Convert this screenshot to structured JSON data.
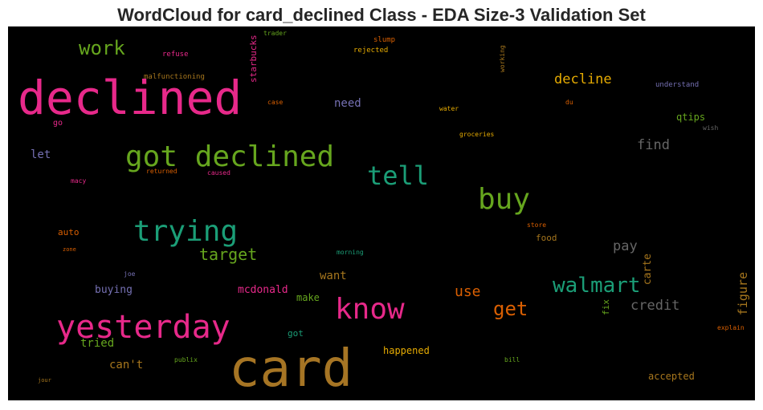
{
  "title": "WordCloud for card_declined Class - EDA Size-3 Validation Set",
  "words": [
    {
      "text": "card",
      "color": "#a67524"
    },
    {
      "text": "declined",
      "color": "#e7298a"
    },
    {
      "text": "got declined",
      "color": "#66a61e"
    },
    {
      "text": "yesterday",
      "color": "#e7298a"
    },
    {
      "text": "trying",
      "color": "#1b9e77"
    },
    {
      "text": "know",
      "color": "#e7298a"
    },
    {
      "text": "buy",
      "color": "#66a61e"
    },
    {
      "text": "tell",
      "color": "#1b9e77"
    },
    {
      "text": "walmart",
      "color": "#1b9e77"
    },
    {
      "text": "work",
      "color": "#66a61e"
    },
    {
      "text": "get",
      "color": "#d95f02"
    },
    {
      "text": "target",
      "color": "#66a61e"
    },
    {
      "text": "decline",
      "color": "#e6ab02"
    },
    {
      "text": "use",
      "color": "#d95f02"
    },
    {
      "text": "find",
      "color": "#666666"
    },
    {
      "text": "credit",
      "color": "#666666"
    },
    {
      "text": "pay",
      "color": "#666666"
    },
    {
      "text": "figure",
      "color": "#a6761d"
    },
    {
      "text": "carte",
      "color": "#a6761d"
    },
    {
      "text": "need",
      "color": "#7570b3"
    },
    {
      "text": "want",
      "color": "#a6761d"
    },
    {
      "text": "can't",
      "color": "#a6761d"
    },
    {
      "text": "tried",
      "color": "#66a61e"
    },
    {
      "text": "buying",
      "color": "#7570b3"
    },
    {
      "text": "mcdonald",
      "color": "#e7298a"
    },
    {
      "text": "let",
      "color": "#7570b3"
    },
    {
      "text": "make",
      "color": "#66a61e"
    },
    {
      "text": "happened",
      "color": "#e6ab02"
    },
    {
      "text": "accepted",
      "color": "#a6761d"
    },
    {
      "text": "qtips",
      "color": "#66a61e"
    },
    {
      "text": "food",
      "color": "#a6761d"
    },
    {
      "text": "auto",
      "color": "#d95f02"
    },
    {
      "text": "got",
      "color": "#1b9e77"
    },
    {
      "text": "starbucks",
      "color": "#e7298a"
    },
    {
      "text": "fix",
      "color": "#66a61e"
    },
    {
      "text": "go",
      "color": "#e7298a"
    },
    {
      "text": "malfunctioning",
      "color": "#a6761d"
    },
    {
      "text": "refuse",
      "color": "#e7298a"
    },
    {
      "text": "rejected",
      "color": "#e6ab02"
    },
    {
      "text": "slump",
      "color": "#d95f02"
    },
    {
      "text": "trader",
      "color": "#66a61e"
    },
    {
      "text": "working",
      "color": "#a6761d"
    },
    {
      "text": "understand",
      "color": "#7570b3"
    },
    {
      "text": "case",
      "color": "#d95f02"
    },
    {
      "text": "water",
      "color": "#e6ab02"
    },
    {
      "text": "du",
      "color": "#d95f02"
    },
    {
      "text": "wish",
      "color": "#666666"
    },
    {
      "text": "groceries",
      "color": "#e6ab02"
    },
    {
      "text": "macy",
      "color": "#e7298a"
    },
    {
      "text": "returned",
      "color": "#d95f02"
    },
    {
      "text": "caused",
      "color": "#e7298a"
    },
    {
      "text": "store",
      "color": "#d95f02"
    },
    {
      "text": "zone",
      "color": "#d95f02"
    },
    {
      "text": "morning",
      "color": "#1b9e77"
    },
    {
      "text": "joe",
      "color": "#7570b3"
    },
    {
      "text": "explain",
      "color": "#d95f02"
    },
    {
      "text": "publix",
      "color": "#66a61e"
    },
    {
      "text": "bill",
      "color": "#66a61e"
    },
    {
      "text": "jour",
      "color": "#a6761d"
    }
  ]
}
